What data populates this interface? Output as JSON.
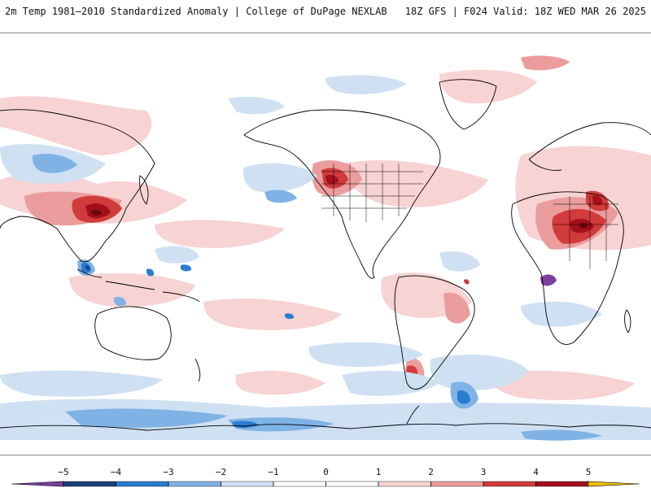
{
  "header": {
    "left": "2m Temp 1981–2010 Standardized Anomaly | College of DuPage NEXLAB",
    "right": "18Z GFS | F024 Valid: 18Z WED MAR 26 2025"
  },
  "map": {
    "variable": "2m Temperature Standardized Anomaly",
    "projection": "cylindrical equidistant, Pacific-centered"
  },
  "colors": {
    "n5": "#7a3fa0",
    "n4": "#1d3f7a",
    "n3": "#2a7ccf",
    "n2": "#7fb2e5",
    "n1": "#cfe0f3",
    "zero": "#ffffff",
    "p1": "#f7d3d3",
    "p2": "#eb9c9c",
    "p3": "#d23b3b",
    "p4": "#a3101c",
    "p5": "#6e0410",
    "over": "#f2c100"
  },
  "colorbar": {
    "ticks": [
      {
        "value": -5,
        "label": "−5"
      },
      {
        "value": -4,
        "label": "−4"
      },
      {
        "value": -3,
        "label": "−3"
      },
      {
        "value": -2,
        "label": "−2"
      },
      {
        "value": -1,
        "label": "−1"
      },
      {
        "value": 0,
        "label": "0"
      },
      {
        "value": 1,
        "label": "1"
      },
      {
        "value": 2,
        "label": "2"
      },
      {
        "value": 3,
        "label": "3"
      },
      {
        "value": 4,
        "label": "4"
      },
      {
        "value": 5,
        "label": "5"
      }
    ]
  }
}
